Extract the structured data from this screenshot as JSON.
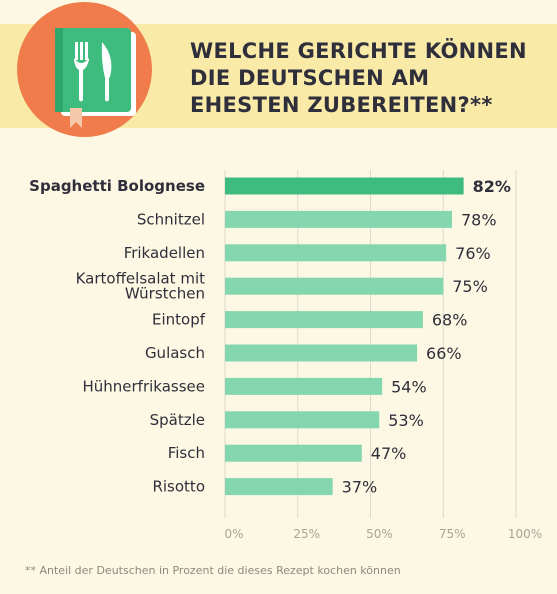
{
  "header": {
    "title": "WELCHE GERICHTE KÖNNEN\nDIE DEUTSCHEN AM\nEHESTEN ZUBEREITEN?**",
    "icon": "cookbook-fork-knife-icon"
  },
  "footnote": "** Anteil der Deutschen in Prozent die dieses Rezept kochen können",
  "colors": {
    "background": "#fdf8e4",
    "header_band": "#f9eaa8",
    "badge": "#ef7c4a",
    "book": "#3dbc7e",
    "bar_highlight": "#3dbc7e",
    "bar": "#84d6ae",
    "text": "#2f2f3b",
    "grid": "#dcd9cb",
    "tick": "#a9a595"
  },
  "chart_data": {
    "type": "bar",
    "orientation": "horizontal",
    "categories": [
      "Spaghetti Bolognese",
      "Schnitzel",
      "Frikadellen",
      "Kartoffelsalat mit Würstchen",
      "Eintopf",
      "Gulasch",
      "Hühnerfrikassee",
      "Spätzle",
      "Fisch",
      "Risotto"
    ],
    "category_lines": [
      [
        "Spaghetti Bolognese"
      ],
      [
        "Schnitzel"
      ],
      [
        "Frikadellen"
      ],
      [
        "Kartoffelsalat mit",
        "Würstchen"
      ],
      [
        "Eintopf"
      ],
      [
        "Gulasch"
      ],
      [
        "Hühnerfrikassee"
      ],
      [
        "Spätzle"
      ],
      [
        "Fisch"
      ],
      [
        "Risotto"
      ]
    ],
    "values": [
      82,
      78,
      76,
      75,
      68,
      66,
      54,
      53,
      47,
      37
    ],
    "value_labels": [
      "82%",
      "78%",
      "76%",
      "75%",
      "68%",
      "66%",
      "54%",
      "53%",
      "47%",
      "37%"
    ],
    "highlight_index": 0,
    "xlim": [
      0,
      100
    ],
    "x_ticks": [
      0,
      25,
      50,
      75,
      100
    ],
    "x_tick_labels": [
      "0%",
      "25%",
      "50%",
      "75%",
      "100%"
    ],
    "grid": true
  }
}
